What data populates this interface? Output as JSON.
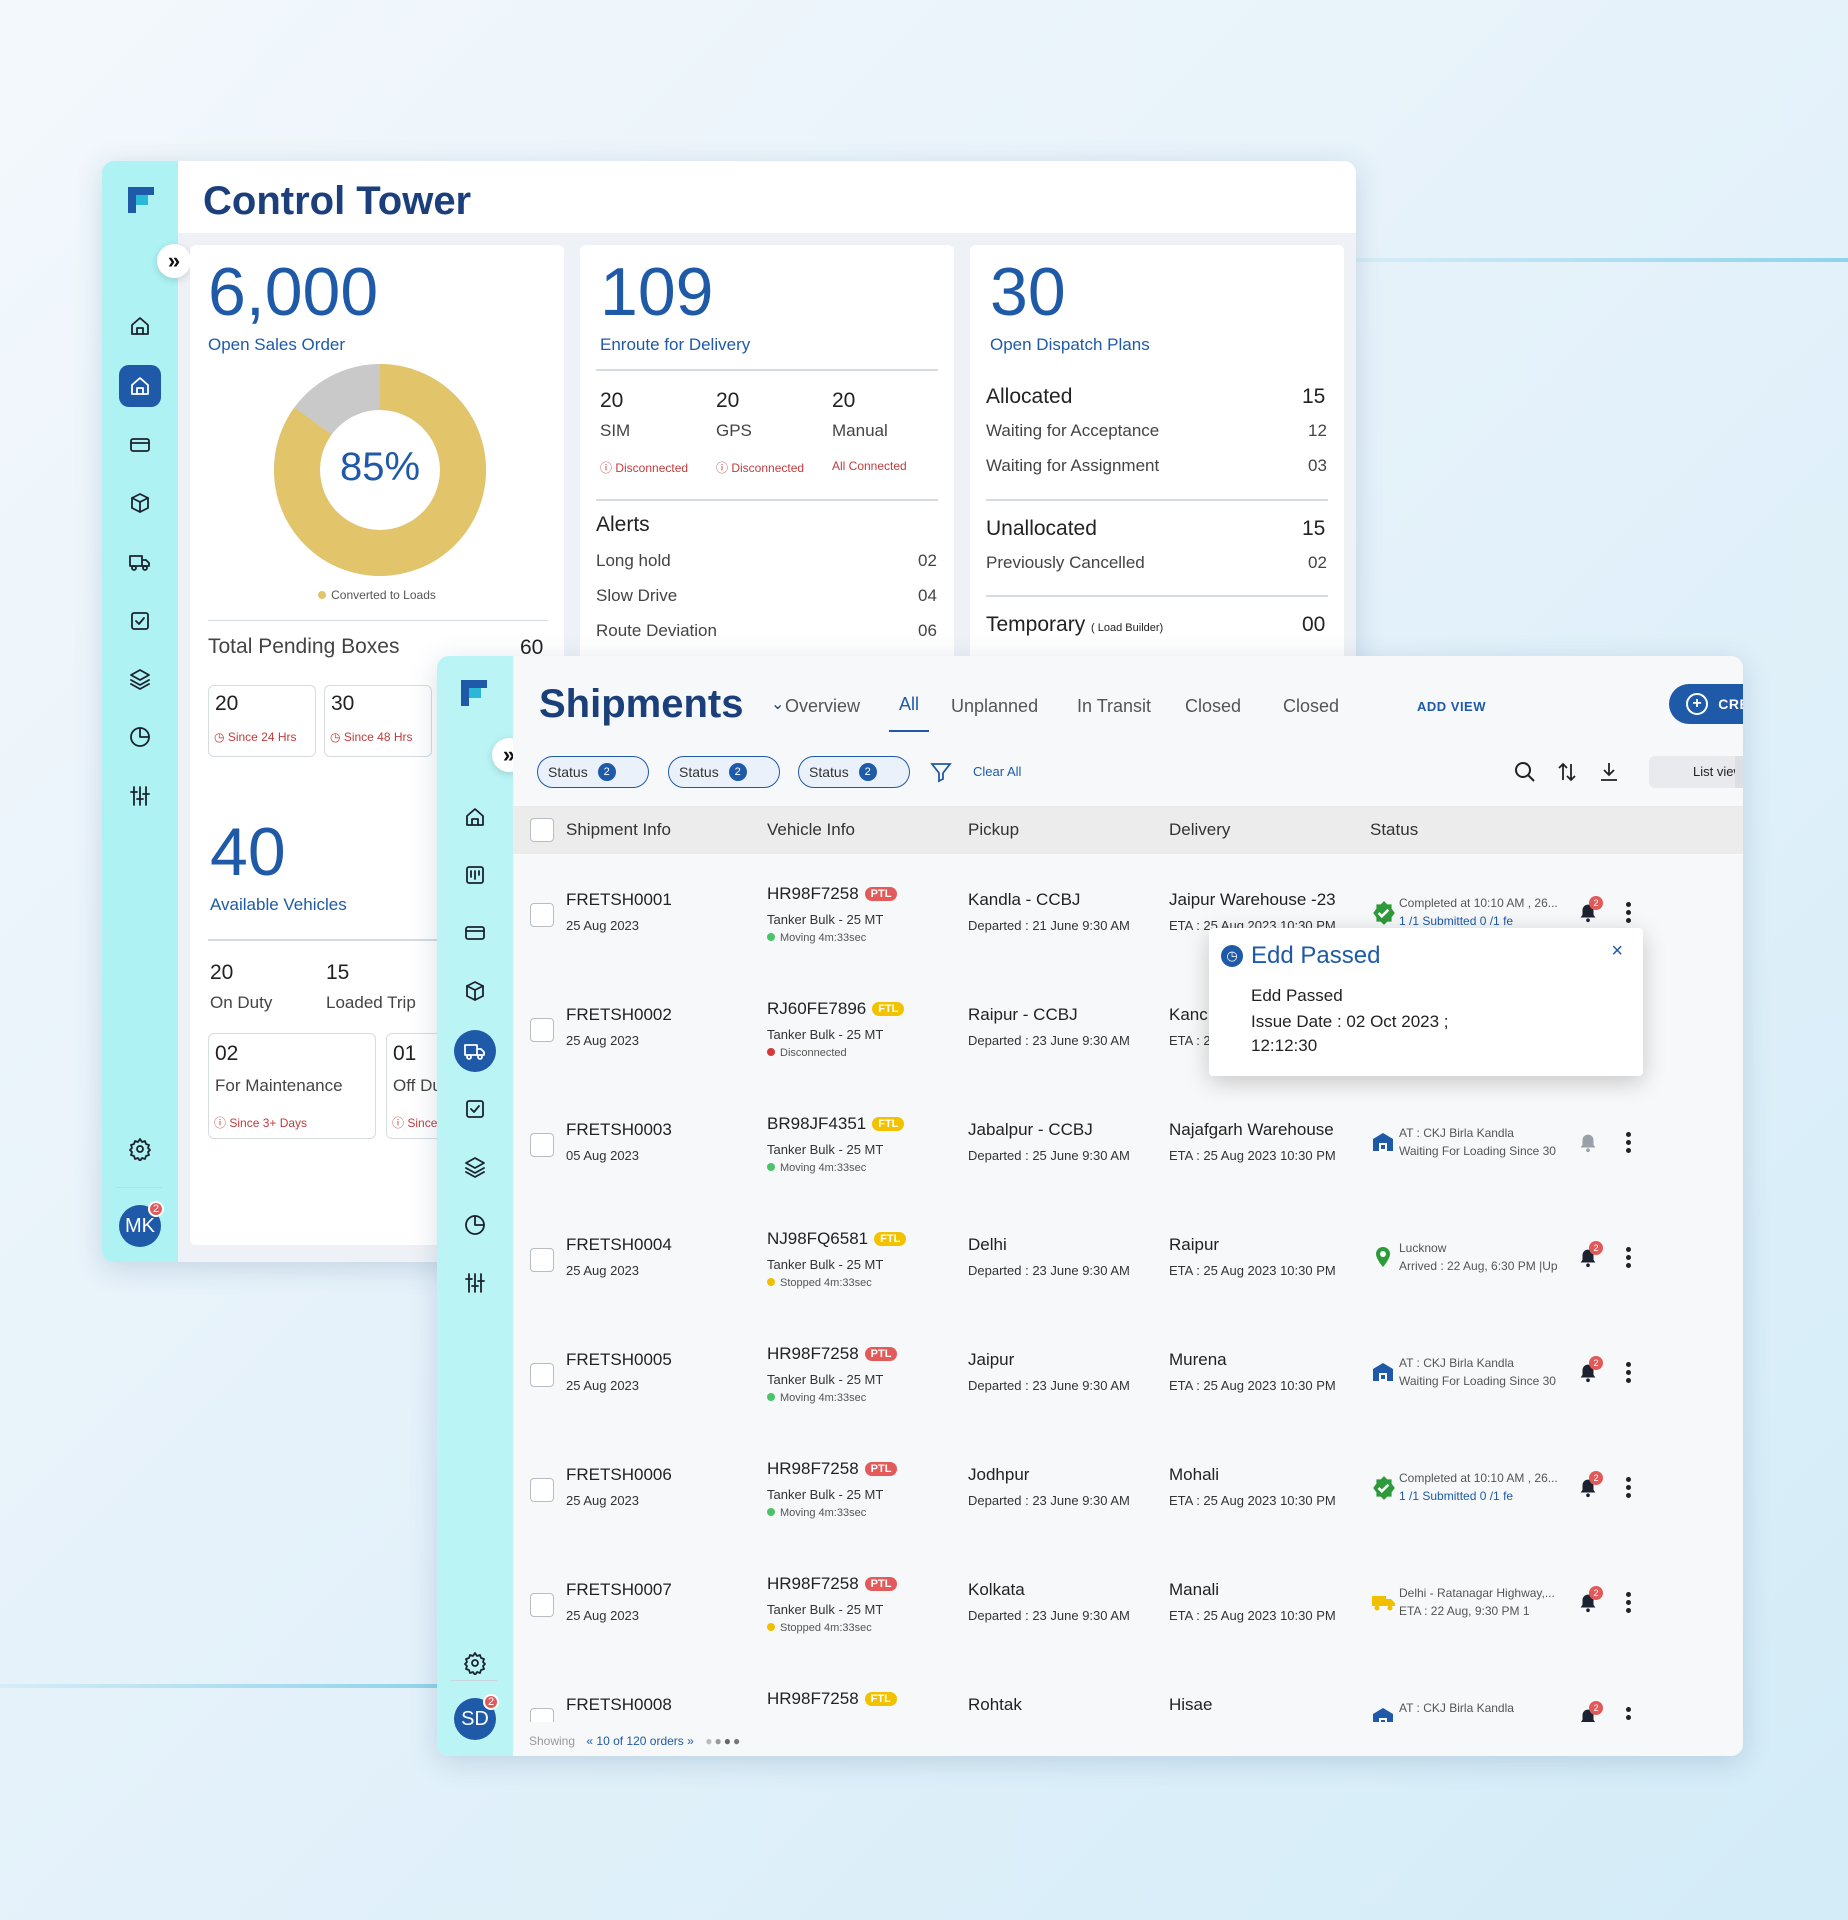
{
  "control_tower": {
    "title": "Control Tower",
    "open_sales": {
      "value": "6,000",
      "label": "Open Sales Order",
      "percent": "85%",
      "percent_value": 85,
      "legend": "Converted to Loads",
      "total_pending_label": "Total Pending Boxes",
      "total_pending_value": "60",
      "boxes": [
        {
          "value": "20",
          "since": "Since 24 Hrs"
        },
        {
          "value": "30",
          "since": "Since 48 Hrs"
        }
      ]
    },
    "enroute": {
      "value": "109",
      "label": "Enroute for Delivery",
      "trackers": [
        {
          "value": "20",
          "label": "SIM",
          "status": "Disconnected"
        },
        {
          "value": "20",
          "label": "GPS",
          "status": "Disconnected"
        },
        {
          "value": "20",
          "label": "Manual",
          "status": "All Connected"
        }
      ],
      "alerts_title": "Alerts",
      "alerts": [
        {
          "label": "Long hold",
          "value": "02"
        },
        {
          "label": "Slow Drive",
          "value": "04"
        },
        {
          "label": "Route Deviation",
          "value": "06"
        }
      ]
    },
    "dispatch": {
      "value": "30",
      "label": "Open Dispatch Plans",
      "allocated": {
        "label": "Allocated",
        "value": "15"
      },
      "waiting_acceptance": {
        "label": "Waiting for Acceptance",
        "value": "12"
      },
      "waiting_assignment": {
        "label": "Waiting for Assignment",
        "value": "03"
      },
      "unallocated": {
        "label": "Unallocated",
        "value": "15"
      },
      "prev_cancelled": {
        "label": "Previously Cancelled",
        "value": "02"
      },
      "temporary": {
        "label": "Temporary",
        "note": "( Load Builder)",
        "value": "00"
      }
    },
    "vehicles": {
      "value": "40",
      "label": "Available Vehicles",
      "stats": [
        {
          "value": "20",
          "label": "On Duty"
        },
        {
          "value": "15",
          "label": "Loaded Trip"
        }
      ],
      "boxes": [
        {
          "value": "02",
          "label": "For Maintenance",
          "since": "Since 3+ Days"
        },
        {
          "value": "01",
          "label": "Off Du",
          "since": "Since"
        }
      ]
    },
    "user_initials": "MK",
    "notif_count": "2"
  },
  "shipments": {
    "title": "Shipments",
    "tabs": [
      "Overview",
      "All",
      "Unplanned",
      "In Transit",
      "Closed",
      "Closed"
    ],
    "active_tab": "All",
    "add_view": "ADD VIEW",
    "create": "CREATE",
    "filters": [
      {
        "label": "Status",
        "count": "2"
      },
      {
        "label": "Status",
        "count": "2"
      },
      {
        "label": "Status",
        "count": "2"
      }
    ],
    "clear_all": "Clear All",
    "view_mode": "List view",
    "columns": [
      "Shipment Info",
      "Vehicle Info",
      "Pickup",
      "Delivery",
      "Status"
    ],
    "rows": [
      {
        "id": "FRETSH0001",
        "date": "25 Aug 2023",
        "vehicle": "HR98F7258",
        "load": "PTL",
        "vtype": "Tanker Bulk - 25 MT",
        "vstatus": "Moving 4m:33sec",
        "vcolor": "#4cc36a",
        "pickup": "Kandla - CCBJ",
        "pickup_sub": "Departed : 21 June 9:30 AM",
        "delivery": "Jaipur Warehouse -23",
        "delivery_sub": "ETA : 25 Aug 2023 10:30 PM",
        "status1": "Completed at 10:10 AM , 26...",
        "status2": "1 /1 Submitted   0 /1 fe",
        "icon": "check-badge-icon",
        "bell": "2"
      },
      {
        "id": "FRETSH0002",
        "date": "25 Aug 2023",
        "vehicle": "RJ60FE7896",
        "load": "FTL",
        "vtype": "Tanker Bulk - 25 MT",
        "vstatus": "Disconnected",
        "vcolor": "#d43a3a",
        "pickup": "Raipur - CCBJ",
        "pickup_sub": "Departed : 23 June 9:30 AM",
        "delivery": "Kanc",
        "delivery_sub": "ETA : 2",
        "status1": "",
        "status2": "",
        "icon": "",
        "bell": "2"
      },
      {
        "id": "FRETSH0003",
        "date": "05 Aug 2023",
        "vehicle": "BR98JF4351",
        "load": "FTL",
        "vtype": "Tanker Bulk - 25 MT",
        "vstatus": "Moving 4m:33sec",
        "vcolor": "#4cc36a",
        "pickup": "Jabalpur - CCBJ",
        "pickup_sub": "Departed : 25 June 9:30 AM",
        "delivery": "Najafgarh Warehouse",
        "delivery_sub": "ETA : 25 Aug 2023 10:30 PM",
        "status1": "AT : CKJ Birla Kandla",
        "status2": "Waiting For Loading Since 30",
        "icon": "warehouse-icon",
        "bell": ""
      },
      {
        "id": "FRETSH0004",
        "date": "25 Aug 2023",
        "vehicle": "NJ98FQ6581",
        "load": "FTL",
        "vtype": "Tanker Bulk - 25 MT",
        "vstatus": "Stopped 4m:33sec",
        "vcolor": "#f0c000",
        "pickup": "Delhi",
        "pickup_sub": "Departed : 23 June 9:30 AM",
        "delivery": "Raipur",
        "delivery_sub": "ETA : 25 Aug 2023 10:30 PM",
        "status1": "Lucknow",
        "status2": "Arrived : 22 Aug, 6:30 PM |Up",
        "icon": "location-pin-icon",
        "bell": "2"
      },
      {
        "id": "FRETSH0005",
        "date": "25 Aug 2023",
        "vehicle": "HR98F7258",
        "load": "PTL",
        "vtype": "Tanker Bulk - 25 MT",
        "vstatus": "Moving 4m:33sec",
        "vcolor": "#4cc36a",
        "pickup": "Jaipur",
        "pickup_sub": "Departed : 23 June 9:30 AM",
        "delivery": "Murena",
        "delivery_sub": "ETA : 25 Aug 2023 10:30 PM",
        "status1": "AT : CKJ Birla Kandla",
        "status2": "Waiting For Loading Since 30",
        "icon": "warehouse-icon",
        "bell": "2"
      },
      {
        "id": "FRETSH0006",
        "date": "25 Aug 2023",
        "vehicle": "HR98F7258",
        "load": "PTL",
        "vtype": "Tanker Bulk - 25 MT",
        "vstatus": "Moving 4m:33sec",
        "vcolor": "#4cc36a",
        "pickup": "Jodhpur",
        "pickup_sub": "Departed : 23 June 9:30 AM",
        "delivery": "Mohali",
        "delivery_sub": "ETA : 25 Aug 2023 10:30 PM",
        "status1": "Completed at 10:10 AM , 26...",
        "status2": "1 /1 Submitted   0 /1 fe",
        "icon": "check-badge-icon",
        "bell": "2"
      },
      {
        "id": "FRETSH0007",
        "date": "25 Aug 2023",
        "vehicle": "HR98F7258",
        "load": "PTL",
        "vtype": "Tanker Bulk - 25 MT",
        "vstatus": "Stopped 4m:33sec",
        "vcolor": "#f0c000",
        "pickup": "Kolkata",
        "pickup_sub": "Departed : 23 June 9:30 AM",
        "delivery": "Manali",
        "delivery_sub": "ETA : 25 Aug 2023 10:30 PM",
        "status1": "Delhi - Ratanagar Highway,...",
        "status2": "ETA : 22 Aug,  9:30 PM   1",
        "icon": "truck-icon",
        "bell": "2"
      },
      {
        "id": "FRETSH0008",
        "date": "",
        "vehicle": "HR98F7258",
        "load": "FTL",
        "vtype": "",
        "vstatus": "",
        "vcolor": "",
        "pickup": "Rohtak",
        "pickup_sub": "",
        "delivery": "Hisae",
        "delivery_sub": "",
        "status1": "AT : CKJ Birla Kandla",
        "status2": "",
        "icon": "warehouse-icon",
        "bell": "2"
      }
    ],
    "footer": {
      "showing": "Showing",
      "range": "10 of 120 orders"
    },
    "popup": {
      "title": "Edd Passed",
      "line1": "Edd Passed",
      "line2": "Issue Date : 02 Oct 2023 ;",
      "line3": "12:12:30"
    },
    "user_initials": "SD",
    "notif_count": "2"
  },
  "colors": {
    "primary": "#1e5aa8",
    "rail": "#aef2f3",
    "donut": "#e2c46a",
    "donut_rest": "#c9c9c9",
    "error": "#c23b3b"
  }
}
